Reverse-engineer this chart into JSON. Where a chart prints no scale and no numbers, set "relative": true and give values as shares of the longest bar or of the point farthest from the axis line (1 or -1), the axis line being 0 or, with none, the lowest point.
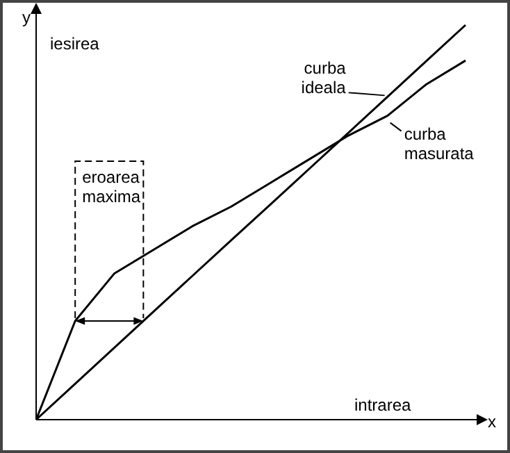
{
  "chart_data": {
    "type": "line",
    "relative": true,
    "xlabel": "x",
    "ylabel": "y",
    "marker": "none",
    "line_style": "solid",
    "categories": [
      null,
      null,
      null,
      null,
      null,
      null,
      null,
      null,
      null,
      null,
      null,
      null
    ],
    "series": [
      {
        "name": "curba ideala",
        "color": "#000000",
        "values": [
          0,
          0.091,
          0.182,
          0.273,
          0.364,
          0.455,
          0.545,
          0.636,
          0.727,
          0.818,
          0.909,
          1
        ]
      },
      {
        "name": "curba masurata",
        "color": "#000000",
        "values": [
          0,
          0.25,
          0.37,
          0.43,
          0.49,
          0.54,
          0.6,
          0.66,
          0.72,
          0.77,
          0.85,
          0.91
        ]
      }
    ],
    "annotations": [
      "iesirea",
      "intrarea",
      "eroarea maxima"
    ]
  }
}
